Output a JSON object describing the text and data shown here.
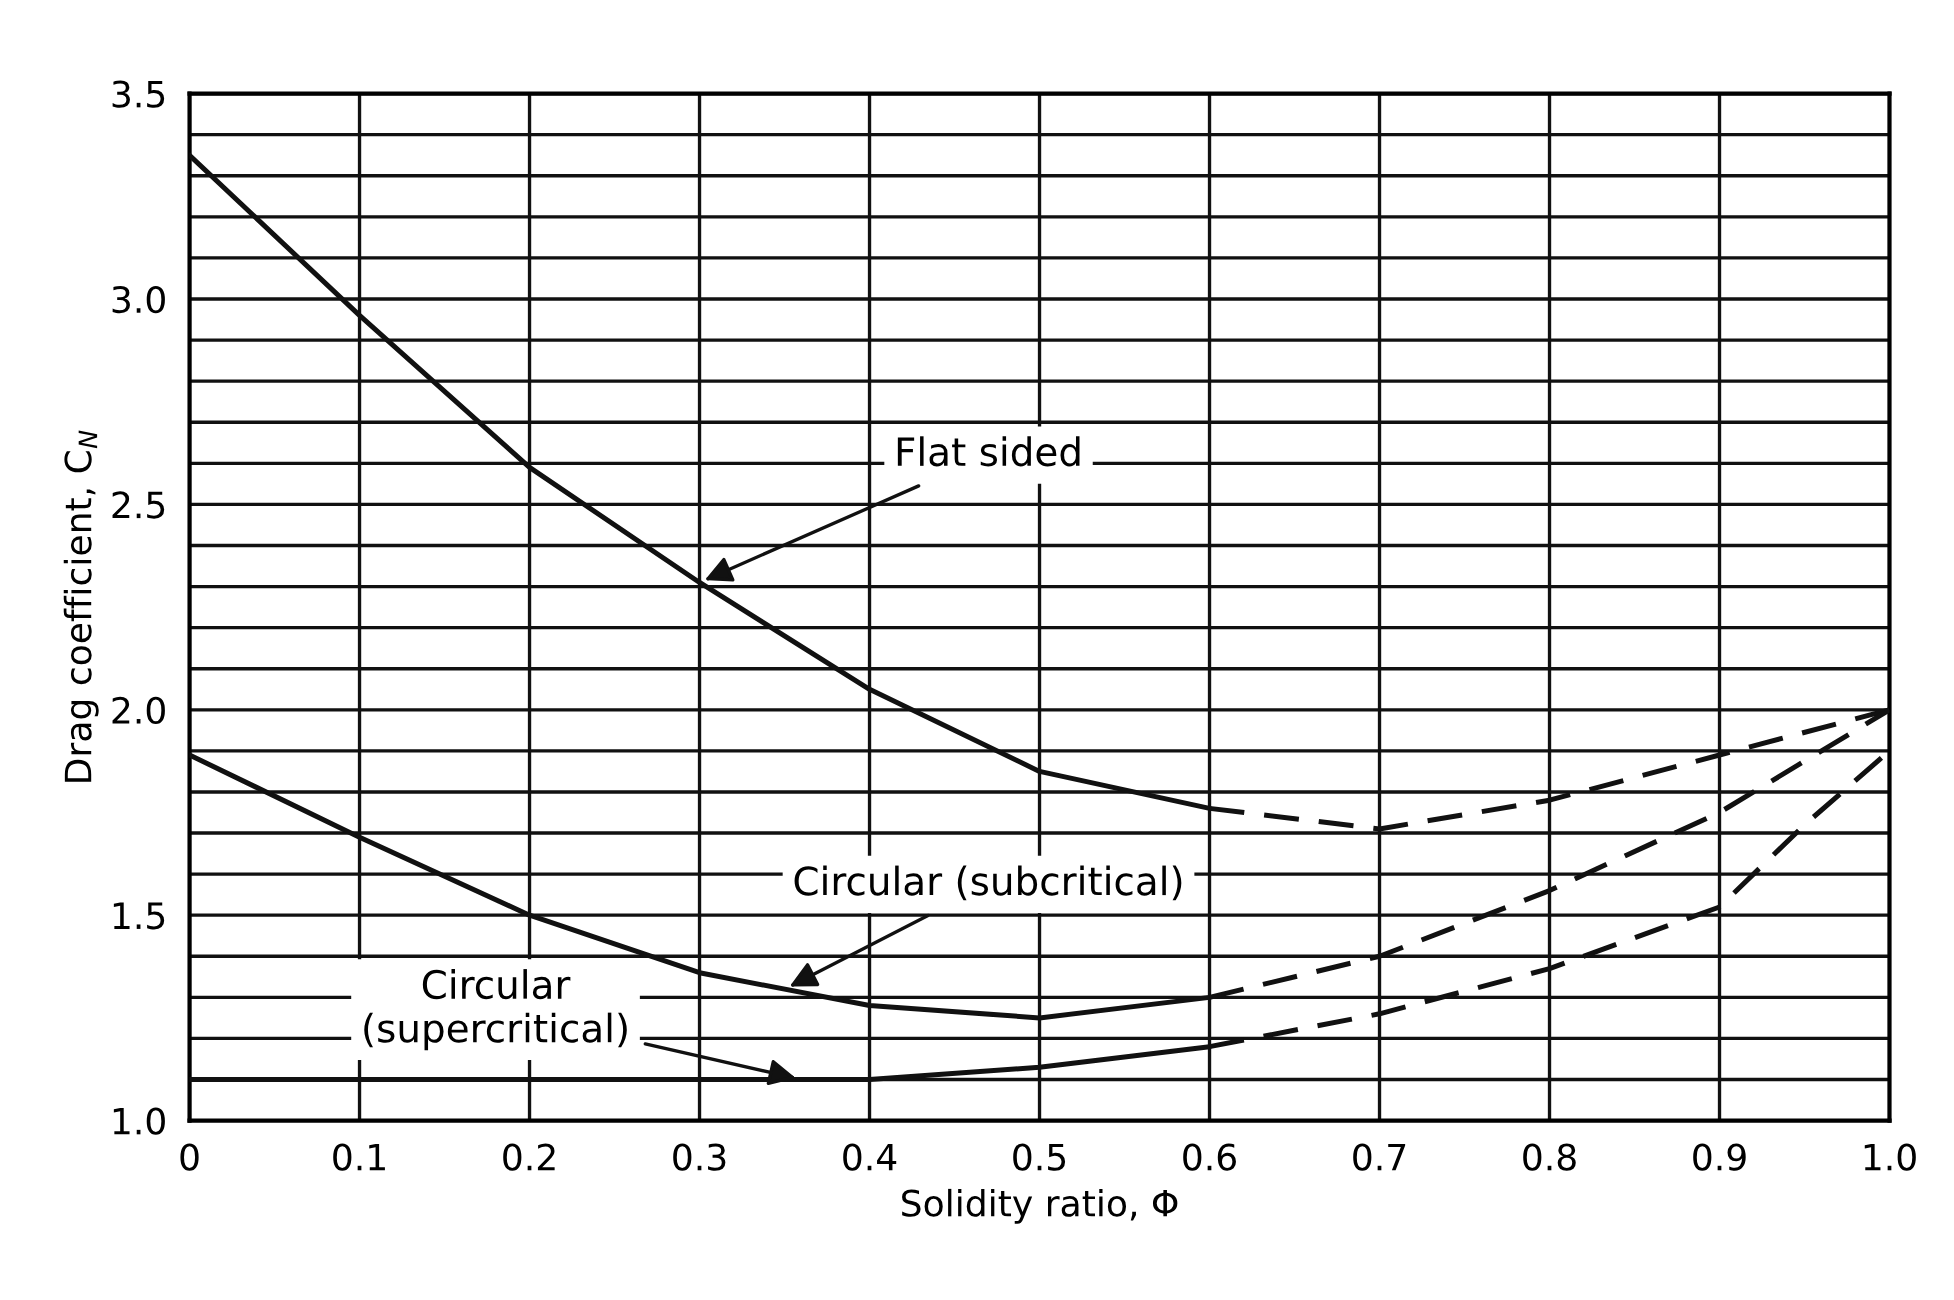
{
  "chart_data": {
    "type": "line",
    "xlabel": "Solidity ratio, Φ",
    "ylabel": "Drag coefficient, C$_{N}$",
    "series": [
      {
        "color": "#111111",
        "line_style": "solid",
        "x": [
          0,
          0.1,
          0.2,
          0.3,
          0.4,
          0.5,
          0.6
        ],
        "values": [
          3.35,
          2.96,
          2.59,
          2.31,
          2.05,
          1.85,
          1.76
        ]
      },
      {
        "color": "#111111",
        "line_style": "dashed",
        "x": [
          0.6,
          0.7,
          0.8,
          0.9,
          1.0
        ],
        "values": [
          1.76,
          1.71,
          1.78,
          1.89,
          2.0
        ]
      },
      {
        "color": "#111111",
        "line_style": "solid",
        "x": [
          0,
          0.1,
          0.2,
          0.3,
          0.4,
          0.5,
          0.6
        ],
        "values": [
          1.89,
          1.69,
          1.5,
          1.36,
          1.28,
          1.25,
          1.3
        ]
      },
      {
        "color": "#111111",
        "line_style": "dashed",
        "x": [
          0.6,
          0.7,
          0.8,
          0.9,
          1.0
        ],
        "values": [
          1.3,
          1.4,
          1.56,
          1.75,
          2.0
        ]
      },
      {
        "color": "#111111",
        "line_style": "solid",
        "x": [
          0,
          0.1,
          0.2,
          0.3,
          0.4,
          0.5,
          0.6
        ],
        "values": [
          1.1,
          1.1,
          1.1,
          1.1,
          1.1,
          1.13,
          1.18
        ]
      },
      {
        "color": "#111111",
        "line_style": "dashed",
        "x": [
          0.6,
          0.7,
          0.8,
          0.9,
          0.95,
          1.0
        ],
        "values": [
          1.18,
          1.26,
          1.37,
          1.52,
          1.72,
          1.9
        ]
      }
    ],
    "annotations": [
      {
        "text": "Flat sided",
        "x": 0.3,
        "y": 2.31
      },
      {
        "text": "Circular (subcritical)",
        "x": 0.35,
        "y": 1.32
      },
      {
        "text": "Circular\n(supercritical)",
        "x": 0.36,
        "y": 1.1
      }
    ],
    "xlim": [
      0,
      1.0
    ],
    "ylim": [
      1.0,
      3.5
    ],
    "xticks": [
      {
        "value": 0,
        "label": "0"
      },
      {
        "value": 0.1,
        "label": "0.1"
      },
      {
        "value": 0.2,
        "label": "0.2"
      },
      {
        "value": 0.3,
        "label": "0.3"
      },
      {
        "value": 0.4,
        "label": "0.4"
      },
      {
        "value": 0.5,
        "label": "0.5"
      },
      {
        "value": 0.6,
        "label": "0.6"
      },
      {
        "value": 0.7,
        "label": "0.7"
      },
      {
        "value": 0.8,
        "label": "0.8"
      },
      {
        "value": 0.9,
        "label": "0.9"
      },
      {
        "value": 1.0,
        "label": "1.0"
      }
    ],
    "yticks": [
      {
        "value": 1.0,
        "label": "1.0"
      },
      {
        "value": 1.1,
        "label": null
      },
      {
        "value": 1.2,
        "label": null
      },
      {
        "value": 1.3,
        "label": null
      },
      {
        "value": 1.4,
        "label": null
      },
      {
        "value": 1.5,
        "label": "1.5"
      },
      {
        "value": 1.6,
        "label": null
      },
      {
        "value": 1.7,
        "label": null
      },
      {
        "value": 1.8,
        "label": null
      },
      {
        "value": 1.9,
        "label": null
      },
      {
        "value": 2.0,
        "label": "2.0"
      },
      {
        "value": 2.1,
        "label": null
      },
      {
        "value": 2.2,
        "label": null
      },
      {
        "value": 2.3,
        "label": null
      },
      {
        "value": 2.4,
        "label": null
      },
      {
        "value": 2.5,
        "label": "2.5"
      },
      {
        "value": 2.6,
        "label": null
      },
      {
        "value": 2.7,
        "label": null
      },
      {
        "value": 2.8,
        "label": null
      },
      {
        "value": 2.9,
        "label": null
      },
      {
        "value": 3.0,
        "label": "3.0"
      },
      {
        "value": 3.1,
        "label": null
      },
      {
        "value": 3.2,
        "label": null
      },
      {
        "value": 3.3,
        "label": null
      },
      {
        "value": 3.4,
        "label": null
      },
      {
        "value": 3.5,
        "label": "3.5"
      }
    ],
    "grid": true
  }
}
